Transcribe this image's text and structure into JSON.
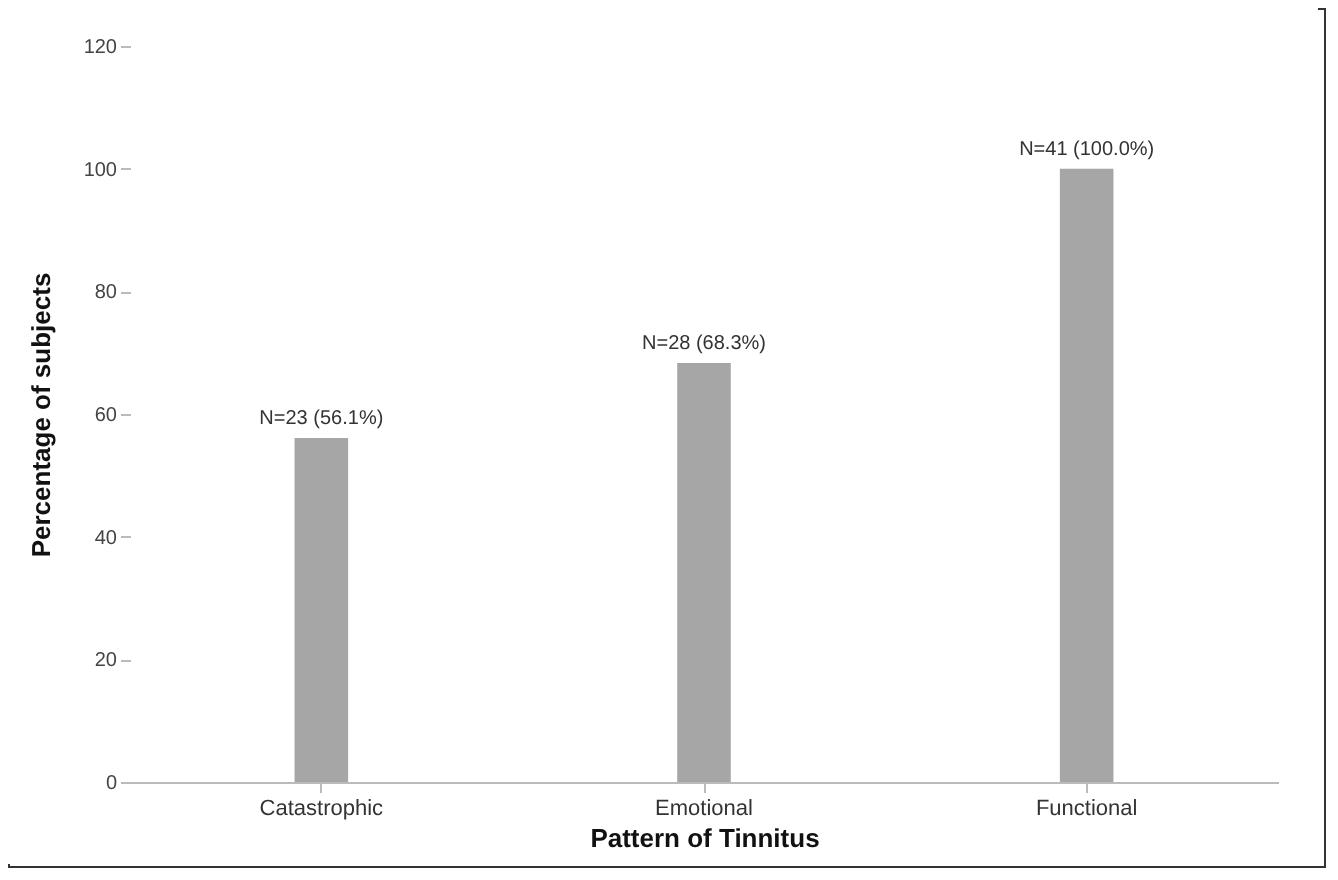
{
  "chart_data": {
    "type": "bar",
    "xlabel": "Pattern of Tinnitus",
    "ylabel": "Percentage of subjects",
    "categories": [
      "Catastrophic",
      "Emotional",
      "Functional"
    ],
    "values": [
      56.1,
      68.3,
      100
    ],
    "value_labels": [
      "N=23 (56.1%)",
      "N=28 (68.3%)",
      "N=41 (100.0%)"
    ],
    "color": "#a6a6a6",
    "ylim": [
      0,
      120
    ],
    "yticks": [
      0,
      20,
      40,
      60,
      80,
      100,
      120
    ],
    "grid": false
  }
}
